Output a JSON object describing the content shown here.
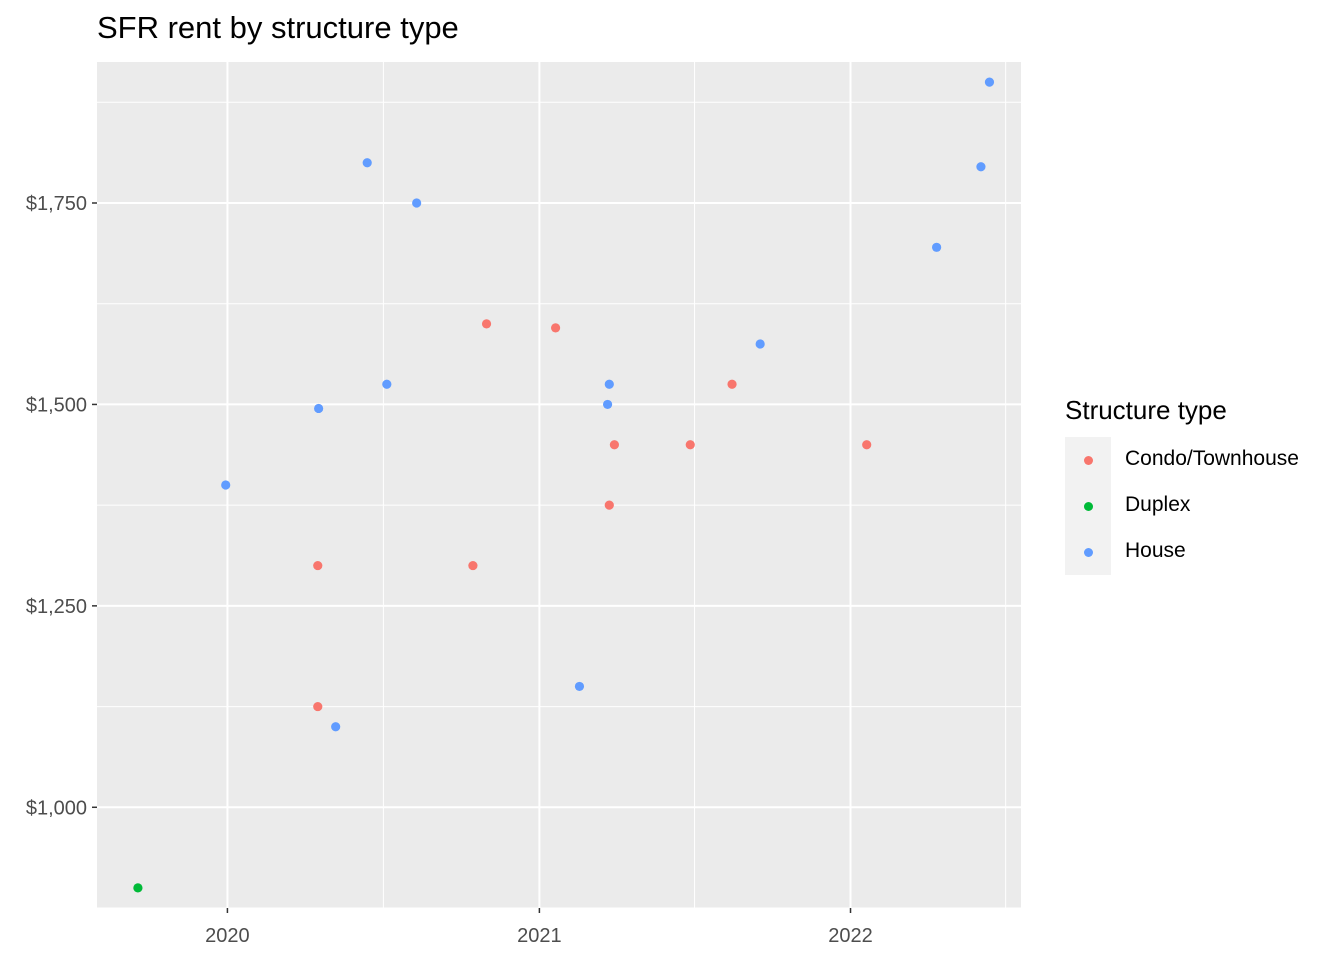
{
  "chart_data": {
    "type": "scatter",
    "title": "SFR rent by structure type",
    "xlabel": "",
    "ylabel": "",
    "x_ticks": [
      "2020",
      "2021",
      "2022"
    ],
    "y_ticks": [
      "$1,000",
      "$1,250",
      "$1,500",
      "$1,750"
    ],
    "xlim": [
      "2019-08-01",
      "2022-07-20"
    ],
    "ylim": [
      875,
      1925
    ],
    "grid": true,
    "legend": {
      "title": "Structure type",
      "placement": "right"
    },
    "series": [
      {
        "name": "Condo/Townhouse",
        "color": "#F8766D",
        "points": [
          {
            "x": "2020-04-16",
            "y": 1300
          },
          {
            "x": "2020-04-16",
            "y": 1125
          },
          {
            "x": "2020-10-15",
            "y": 1300
          },
          {
            "x": "2020-10-31",
            "y": 1600
          },
          {
            "x": "2021-01-20",
            "y": 1595
          },
          {
            "x": "2021-03-24",
            "y": 1375
          },
          {
            "x": "2021-03-30",
            "y": 1450
          },
          {
            "x": "2021-06-27",
            "y": 1450
          },
          {
            "x": "2021-08-15",
            "y": 1525
          },
          {
            "x": "2022-01-20",
            "y": 1450
          }
        ]
      },
      {
        "name": "Duplex",
        "color": "#00BA38",
        "points": [
          {
            "x": "2019-09-18",
            "y": 900
          }
        ]
      },
      {
        "name": "House",
        "color": "#619CFF",
        "points": [
          {
            "x": "2019-12-30",
            "y": 1400
          },
          {
            "x": "2020-04-17",
            "y": 1495
          },
          {
            "x": "2020-05-07",
            "y": 1100
          },
          {
            "x": "2020-06-13",
            "y": 1800
          },
          {
            "x": "2020-07-06",
            "y": 1525
          },
          {
            "x": "2020-08-10",
            "y": 1750
          },
          {
            "x": "2021-02-17",
            "y": 1150
          },
          {
            "x": "2021-03-22",
            "y": 1500
          },
          {
            "x": "2021-03-24",
            "y": 1525
          },
          {
            "x": "2021-09-17",
            "y": 1575
          },
          {
            "x": "2022-04-12",
            "y": 1695
          },
          {
            "x": "2022-06-03",
            "y": 1795
          },
          {
            "x": "2022-06-13",
            "y": 1900
          }
        ]
      }
    ]
  }
}
